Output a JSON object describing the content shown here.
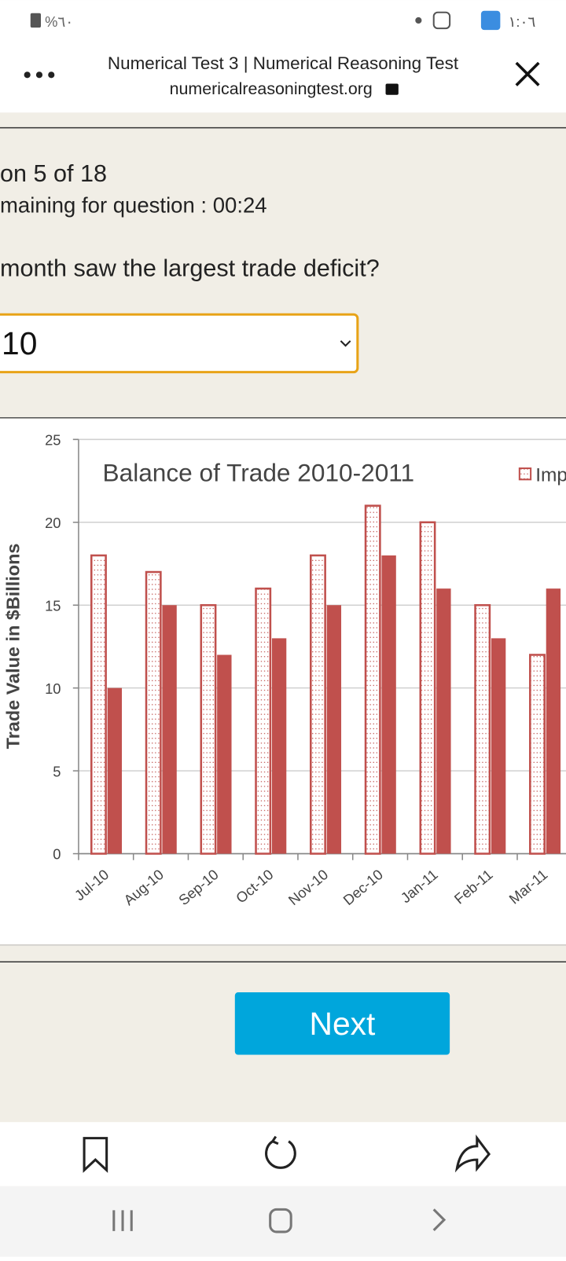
{
  "status_bar": {
    "battery": "%٦٠",
    "time": "١:٠٦"
  },
  "browser": {
    "title": "Numerical Test 3 | Numerical Reasoning Test",
    "url": "numericalreasoningtest.org"
  },
  "question": {
    "progress": "on 5 of 18",
    "timer": "maining for question : 00:24",
    "prompt": "month saw the largest trade deficit?",
    "answer": "10"
  },
  "chart_data": {
    "type": "bar",
    "title": "Balance of Trade 2010-2011",
    "y_label": "Trade Value in $Billions",
    "categories": [
      "Jul-10",
      "Aug-10",
      "Sep-10",
      "Oct-10",
      "Nov-10",
      "Dec-10",
      "Jan-11",
      "Feb-11",
      "Mar-11"
    ],
    "series": [
      {
        "name": "Imports",
        "color": "#c0504d",
        "values": [
          18,
          17,
          15,
          16,
          18,
          21,
          20,
          15,
          12
        ]
      },
      {
        "color": "#c0504d",
        "values": [
          10,
          15,
          12,
          13,
          15,
          18,
          16,
          13,
          16
        ]
      }
    ],
    "ylim": [
      0,
      25
    ],
    "yticks": [
      0,
      5,
      10,
      15,
      20,
      25
    ],
    "grid": true
  },
  "button": {
    "label": "Next"
  }
}
